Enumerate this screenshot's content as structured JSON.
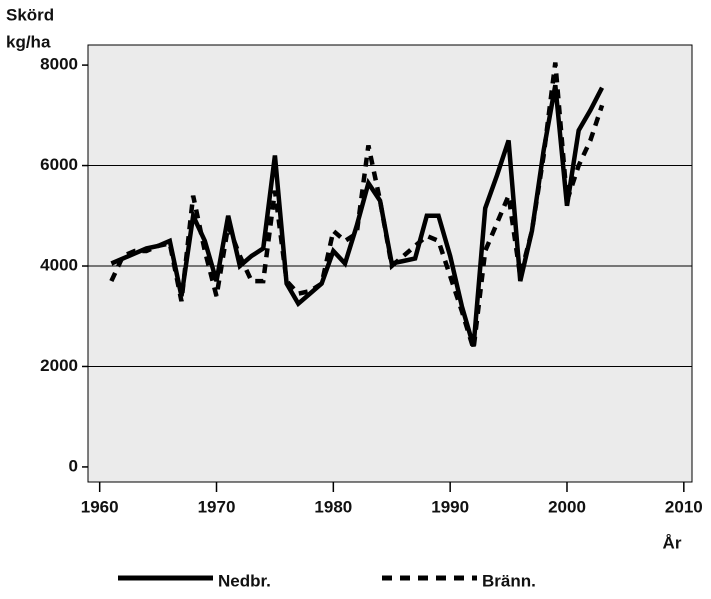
{
  "chart_data": {
    "type": "line",
    "y_label": [
      "Skörd",
      "kg/ha"
    ],
    "x_label": "År",
    "x": [
      1961,
      1962,
      1963,
      1964,
      1965,
      1966,
      1967,
      1968,
      1969,
      1970,
      1971,
      1972,
      1973,
      1974,
      1975,
      1976,
      1977,
      1978,
      1979,
      1980,
      1981,
      1982,
      1983,
      1984,
      1985,
      1986,
      1987,
      1988,
      1989,
      1990,
      1991,
      1992,
      1993,
      1994,
      1995,
      1996,
      1997,
      1998,
      1999,
      2000,
      2001,
      2002,
      2003
    ],
    "series": [
      {
        "name": "Nedbr.",
        "color": "#000000",
        "dash": false,
        "values": [
          4050,
          4150,
          4250,
          4350,
          4400,
          4500,
          3400,
          5000,
          4500,
          3700,
          5000,
          4000,
          4200,
          4350,
          6200,
          3650,
          3250,
          3450,
          3650,
          4300,
          4050,
          4800,
          5650,
          5300,
          4050,
          4100,
          4150,
          5000,
          5000,
          4200,
          3200,
          2400,
          5150,
          5800,
          6500,
          3700,
          4700,
          6300,
          7600,
          5200,
          6700,
          7100,
          7550
        ]
      },
      {
        "name": "Bränn.",
        "color": "#000000",
        "dash": true,
        "values": [
          3700,
          4200,
          4300,
          4300,
          4400,
          4450,
          3300,
          5400,
          4300,
          3400,
          4800,
          4200,
          3700,
          3700,
          5500,
          3700,
          3450,
          3500,
          3650,
          4700,
          4500,
          4650,
          6400,
          5300,
          4000,
          4200,
          4400,
          4600,
          4500,
          3800,
          3100,
          2350,
          4300,
          4850,
          5400,
          3800,
          4700,
          6200,
          8050,
          5300,
          6000,
          6500,
          7200
        ]
      }
    ],
    "xlim": [
      1959,
      2010.7
    ],
    "xticks": [
      1960,
      1970,
      1980,
      1990,
      2000,
      2010
    ],
    "ylim": [
      -300,
      8400
    ],
    "yticks": [
      0,
      2000,
      4000,
      6000,
      8000
    ],
    "grid": true,
    "legend": "bottom",
    "background": "#ebebeb"
  }
}
